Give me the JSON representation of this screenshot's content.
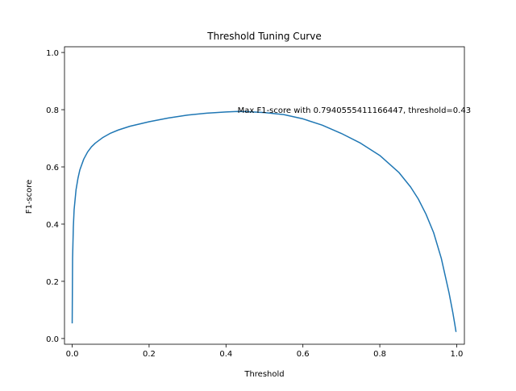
{
  "chart_data": {
    "type": "line",
    "title": "Threshold Tuning Curve",
    "xlabel": "Threshold",
    "ylabel": "F1-score",
    "xlim": [
      -0.02,
      1.02
    ],
    "ylim": [
      -0.02,
      1.02
    ],
    "x_ticks": [
      0.0,
      0.2,
      0.4,
      0.6,
      0.8,
      1.0
    ],
    "x_tick_labels": [
      "0.0",
      "0.2",
      "0.4",
      "0.6",
      "0.8",
      "1.0"
    ],
    "y_ticks": [
      0.0,
      0.2,
      0.4,
      0.6,
      0.8,
      1.0
    ],
    "y_tick_labels": [
      "0.0",
      "0.2",
      "0.4",
      "0.6",
      "0.8",
      "1.0"
    ],
    "grid": false,
    "legend": "none",
    "series": [
      {
        "color": "#1f77b4",
        "x": [
          0.0,
          0.001,
          0.003,
          0.005,
          0.01,
          0.015,
          0.02,
          0.03,
          0.04,
          0.05,
          0.06,
          0.08,
          0.1,
          0.12,
          0.15,
          0.2,
          0.25,
          0.3,
          0.35,
          0.4,
          0.43,
          0.45,
          0.5,
          0.55,
          0.6,
          0.65,
          0.7,
          0.75,
          0.8,
          0.85,
          0.88,
          0.9,
          0.92,
          0.94,
          0.96,
          0.97,
          0.98,
          0.99,
          0.995,
          0.998
        ],
        "y": [
          0.055,
          0.28,
          0.39,
          0.45,
          0.52,
          0.56,
          0.59,
          0.627,
          0.652,
          0.67,
          0.683,
          0.703,
          0.718,
          0.729,
          0.742,
          0.758,
          0.771,
          0.781,
          0.788,
          0.792,
          0.794,
          0.7935,
          0.79,
          0.783,
          0.768,
          0.746,
          0.717,
          0.683,
          0.64,
          0.58,
          0.53,
          0.488,
          0.435,
          0.37,
          0.28,
          0.22,
          0.16,
          0.09,
          0.05,
          0.025
        ]
      }
    ],
    "annotation": {
      "text": "Max F1-score with 0.7940555411166447, threshold=0.43",
      "x": 0.43,
      "y": 0.794
    }
  }
}
